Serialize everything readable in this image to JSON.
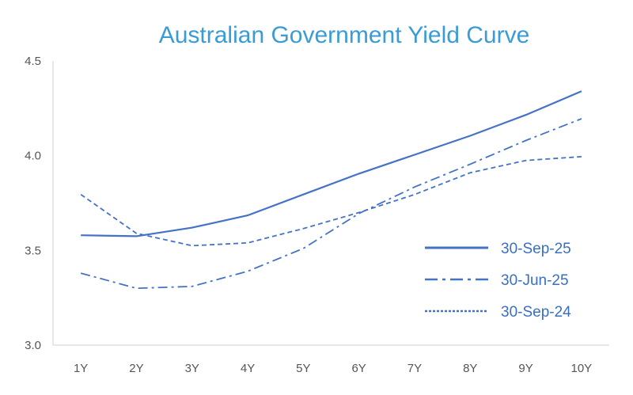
{
  "chart_data": {
    "type": "line",
    "title": "Australian Government Yield Curve",
    "xlabel": "",
    "ylabel": "",
    "categories": [
      "1Y",
      "2Y",
      "3Y",
      "4Y",
      "5Y",
      "6Y",
      "7Y",
      "8Y",
      "9Y",
      "10Y"
    ],
    "ylim": [
      3.0,
      4.5
    ],
    "yticks": [
      "3.0",
      "3.5",
      "4.0",
      "4.5"
    ],
    "grid": false,
    "legend_position": "bottom-right",
    "series": [
      {
        "name": "30-Sep-25",
        "style": "solid",
        "values": [
          3.58,
          3.575,
          3.62,
          3.685,
          3.795,
          3.905,
          4.005,
          4.105,
          4.215,
          4.34
        ],
        "color": "#4472c4"
      },
      {
        "name": "30-Jun-25",
        "style": "dash-dot",
        "values": [
          3.38,
          3.3,
          3.31,
          3.39,
          3.51,
          3.695,
          3.835,
          3.955,
          4.08,
          4.195
        ],
        "color": "#4472c4"
      },
      {
        "name": "30-Sep-24",
        "style": "dash",
        "values": [
          3.795,
          3.59,
          3.525,
          3.54,
          3.615,
          3.7,
          3.795,
          3.91,
          3.975,
          3.995
        ],
        "color": "#4472c4"
      }
    ]
  }
}
